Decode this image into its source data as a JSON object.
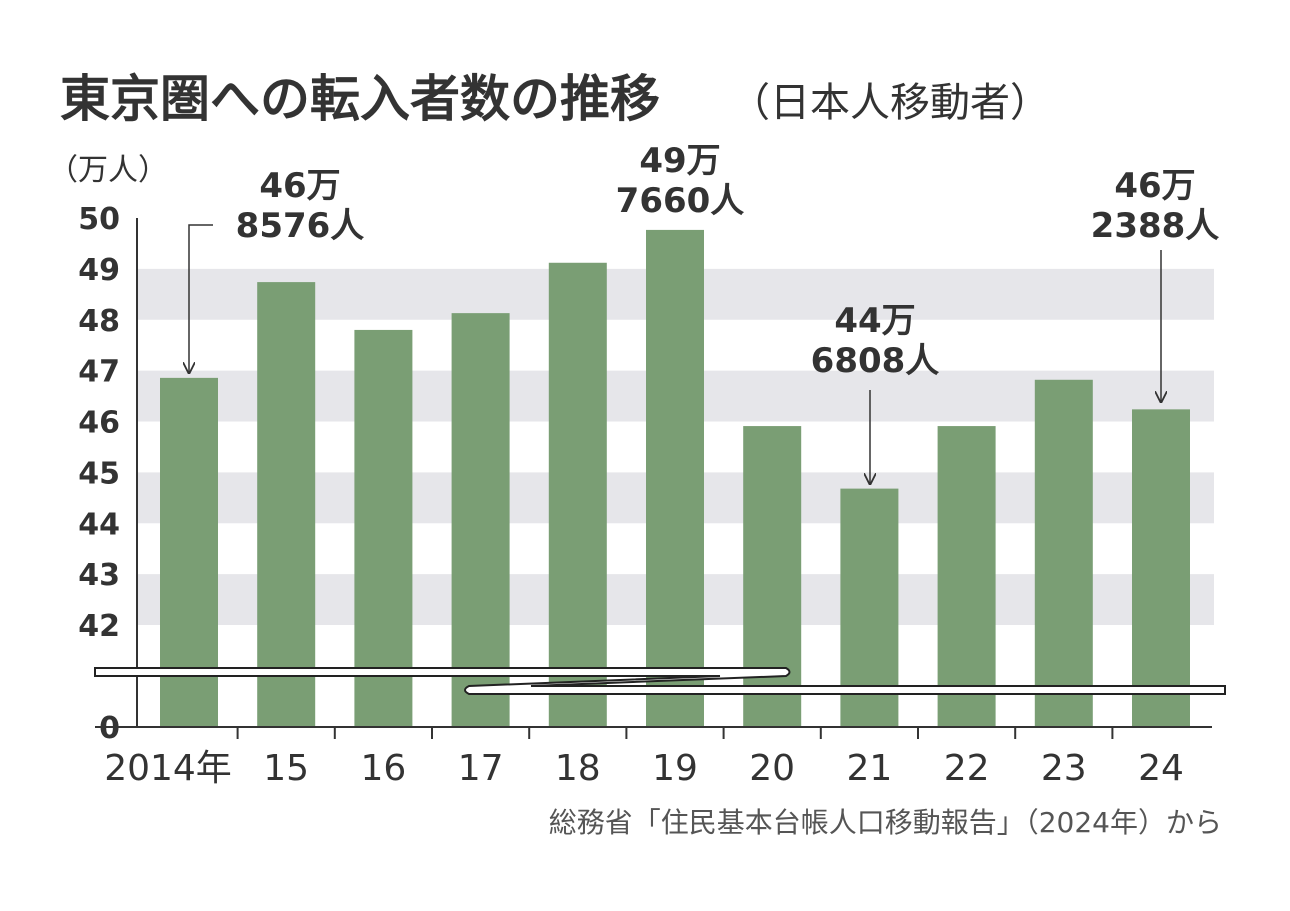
{
  "chart_data": {
    "type": "bar",
    "title": "東京圏への転入者数の推移",
    "subtitle": "（日本人移動者）",
    "ylabel": "（万人）",
    "xlabel": "",
    "categories": [
      "2014年",
      "15",
      "16",
      "17",
      "18",
      "19",
      "20",
      "21",
      "22",
      "23",
      "24"
    ],
    "values": [
      46.8576,
      48.74,
      47.8,
      48.13,
      49.12,
      49.766,
      45.91,
      44.6808,
      45.91,
      46.82,
      46.2388
    ],
    "yticks": [
      "0",
      "42",
      "43",
      "44",
      "45",
      "46",
      "47",
      "48",
      "49",
      "50"
    ],
    "ylim": [
      42,
      50
    ],
    "axis_break": "0 to 42",
    "bar_color": "#7a9e74",
    "band_color": "#e6e6ea",
    "annotations": [
      {
        "index": 0,
        "line1": "46万",
        "line2": "8576人"
      },
      {
        "index": 5,
        "line1": "49万",
        "line2": "7660人"
      },
      {
        "index": 7,
        "line1": "44万",
        "line2": "6808人"
      },
      {
        "index": 10,
        "line1": "46万",
        "line2": "2388人"
      }
    ],
    "source": "総務省「住民基本台帳人口移動報告」（2024年）から"
  }
}
